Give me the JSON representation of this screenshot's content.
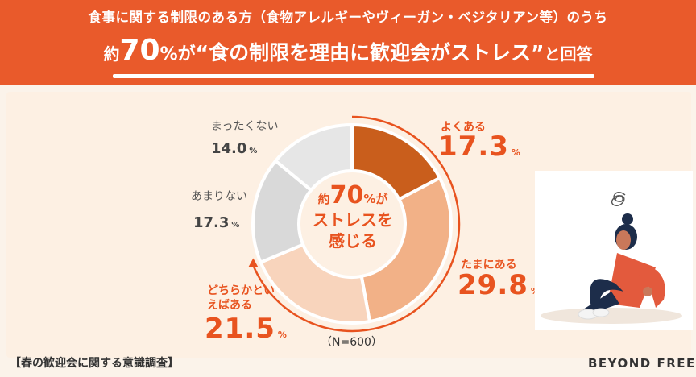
{
  "header": {
    "subtitle": "食事に関する制限のある方（食物アレルギーやヴィーガン・ベジタリアン等）のうち",
    "headline_prefix": "約",
    "headline_number": "70",
    "headline_pct": "%が",
    "headline_main": "“食の制限を理由に歓迎会がストレス”",
    "headline_suffix": "と回答"
  },
  "center": {
    "prefix": "約",
    "number": "70",
    "pct": "%が",
    "line2": "ストレスを",
    "line3": "感じる"
  },
  "sample_note": "（N=600）",
  "source": "【春の歓迎会に関する意識調査】",
  "logo": "BEYOND FREE",
  "unit": "%",
  "chart_data": {
    "type": "pie",
    "donut": true,
    "title": "約70%がストレスを感じる",
    "n": 600,
    "categories": [
      "よくある",
      "たまにある",
      "どちらかといえばある",
      "あまりない",
      "まったくない"
    ],
    "values": [
      17.3,
      29.8,
      21.5,
      17.3,
      14.0
    ],
    "value_labels": [
      "17.3",
      "29.8",
      "21.5",
      "17.3",
      "14.0"
    ],
    "colors": [
      "#c95e1c",
      "#f2b187",
      "#f8d4bc",
      "#d9d9d9",
      "#e6e6e6"
    ]
  }
}
